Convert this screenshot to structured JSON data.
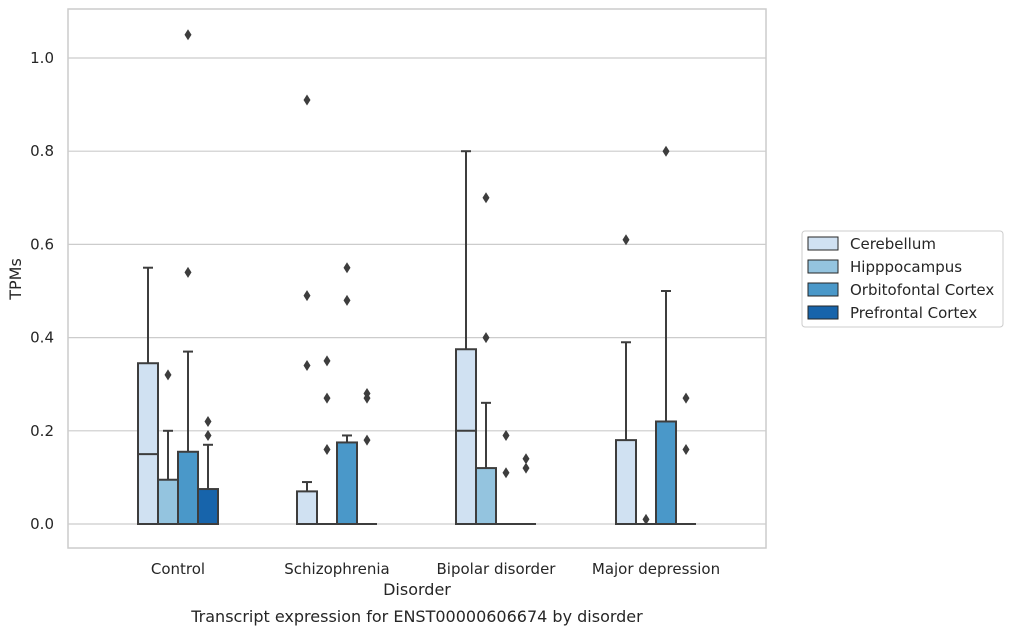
{
  "chart_data": {
    "type": "box",
    "caption": "Transcript expression for ENST00000606674 by disorder",
    "xlabel": "Disorder",
    "ylabel": "TPMs",
    "ylim": [
      -0.05,
      1.1
    ],
    "yticks": [
      0.0,
      0.2,
      0.4,
      0.6,
      0.8,
      1.0
    ],
    "ytick_labels": [
      "0.0",
      "0.2",
      "0.4",
      "0.6",
      "0.8",
      "1.0"
    ],
    "grid": "horizontal",
    "legend_position": "right",
    "categories": [
      "Control",
      "Schizophrenia",
      "Bipolar disorder",
      "Major depression"
    ],
    "series": [
      {
        "name": "Cerebellum",
        "color": "#d0e1f2",
        "boxes": [
          {
            "q1": 0.0,
            "median": 0.15,
            "q3": 0.345,
            "whisker_low": 0.0,
            "whisker_high": 0.55,
            "outliers": []
          },
          {
            "q1": 0.0,
            "median": 0.0,
            "q3": 0.07,
            "whisker_low": 0.0,
            "whisker_high": 0.09,
            "outliers": [
              0.91,
              0.49,
              0.34
            ]
          },
          {
            "q1": 0.0,
            "median": 0.2,
            "q3": 0.375,
            "whisker_low": 0.0,
            "whisker_high": 0.8,
            "outliers": []
          },
          {
            "q1": 0.0,
            "median": 0.0,
            "q3": 0.18,
            "whisker_low": 0.0,
            "whisker_high": 0.39,
            "outliers": [
              0.61
            ]
          }
        ]
      },
      {
        "name": "Hipppocampus",
        "color": "#94c4df",
        "boxes": [
          {
            "q1": 0.0,
            "median": 0.0,
            "q3": 0.095,
            "whisker_low": 0.0,
            "whisker_high": 0.2,
            "outliers": [
              0.32
            ]
          },
          {
            "q1": 0.0,
            "median": 0.0,
            "q3": 0.0,
            "whisker_low": 0.0,
            "whisker_high": 0.0,
            "outliers": [
              0.35,
              0.27,
              0.16
            ]
          },
          {
            "q1": 0.0,
            "median": 0.0,
            "q3": 0.12,
            "whisker_low": 0.0,
            "whisker_high": 0.26,
            "outliers": [
              0.7,
              0.4
            ]
          },
          {
            "q1": 0.0,
            "median": 0.0,
            "q3": 0.0,
            "whisker_low": 0.0,
            "whisker_high": 0.0,
            "outliers": [
              0.01
            ]
          }
        ]
      },
      {
        "name": "Orbitofontal Cortex",
        "color": "#4a98c9",
        "boxes": [
          {
            "q1": 0.0,
            "median": 0.0,
            "q3": 0.155,
            "whisker_low": 0.0,
            "whisker_high": 0.37,
            "outliers": [
              1.05,
              0.54
            ]
          },
          {
            "q1": 0.0,
            "median": 0.0,
            "q3": 0.175,
            "whisker_low": 0.0,
            "whisker_high": 0.19,
            "outliers": [
              0.55,
              0.48
            ]
          },
          {
            "q1": 0.0,
            "median": 0.0,
            "q3": 0.0,
            "whisker_low": 0.0,
            "whisker_high": 0.0,
            "outliers": [
              0.19,
              0.11
            ]
          },
          {
            "q1": 0.0,
            "median": 0.0,
            "q3": 0.22,
            "whisker_low": 0.0,
            "whisker_high": 0.5,
            "outliers": [
              0.8
            ]
          }
        ]
      },
      {
        "name": "Prefrontal Cortex",
        "color": "#1764ab",
        "boxes": [
          {
            "q1": 0.0,
            "median": 0.0,
            "q3": 0.075,
            "whisker_low": 0.0,
            "whisker_high": 0.17,
            "outliers": [
              0.22,
              0.19
            ]
          },
          {
            "q1": 0.0,
            "median": 0.0,
            "q3": 0.0,
            "whisker_low": 0.0,
            "whisker_high": 0.0,
            "outliers": [
              0.28,
              0.27,
              0.18
            ]
          },
          {
            "q1": 0.0,
            "median": 0.0,
            "q3": 0.0,
            "whisker_low": 0.0,
            "whisker_high": 0.0,
            "outliers": [
              0.14,
              0.12
            ]
          },
          {
            "q1": 0.0,
            "median": 0.0,
            "q3": 0.0,
            "whisker_low": 0.0,
            "whisker_high": 0.0,
            "outliers": [
              0.27,
              0.16
            ]
          }
        ]
      }
    ]
  }
}
